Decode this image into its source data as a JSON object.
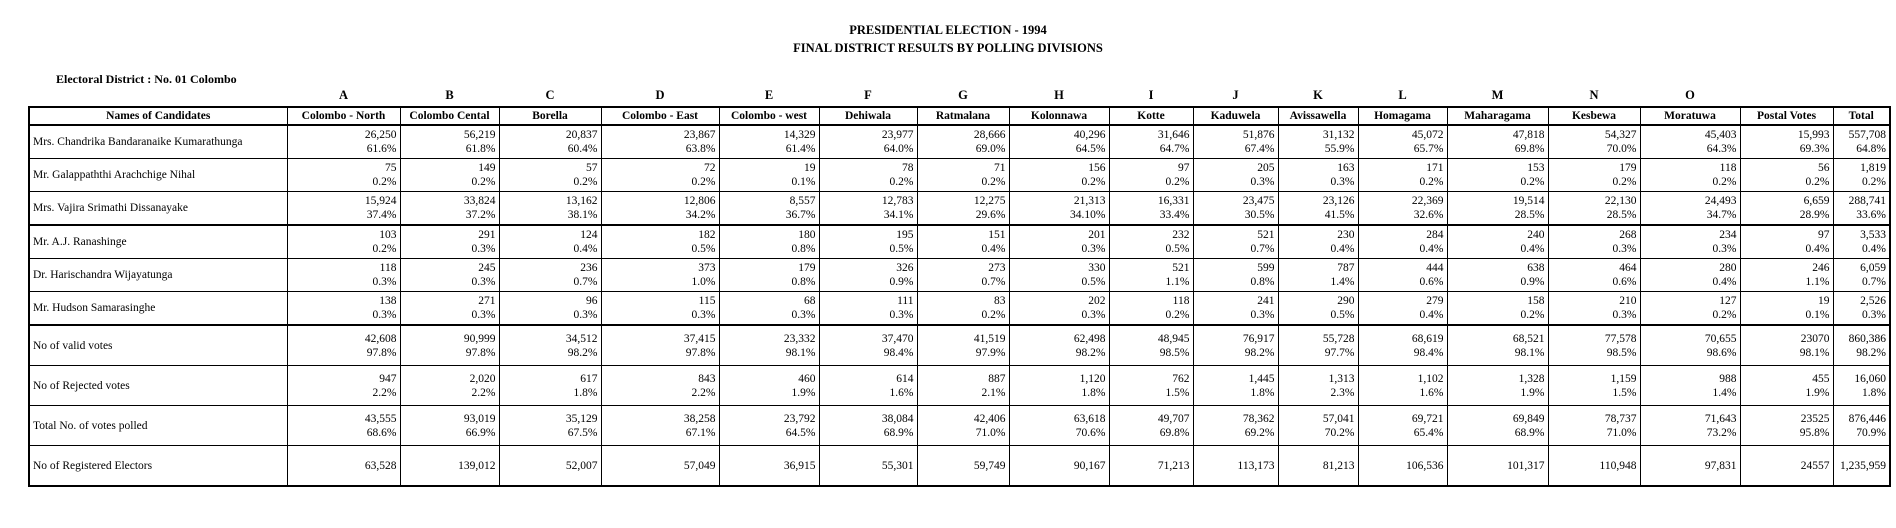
{
  "title_line1": "PRESIDENTIAL ELECTION - 1994",
  "title_line2": "FINAL DISTRICT RESULTS BY POLLING DIVISIONS",
  "district": "Electoral District : No. 01 Colombo",
  "letters": [
    "A",
    "B",
    "C",
    "D",
    "E",
    "F",
    "G",
    "H",
    "I",
    "J",
    "K",
    "L",
    "M",
    "N",
    "O"
  ],
  "headers": [
    "Names of Candidates",
    "Colombo - North",
    "Colombo Cental",
    "Borella",
    "Colombo - East",
    "Colombo - west",
    "Dehiwala",
    "Ratmalana",
    "Kolonnawa",
    "Kotte",
    "Kaduwela",
    "Avissawella",
    "Homagama",
    "Maharagama",
    "Kesbewa",
    "Moratuwa",
    "Postal Votes",
    "Total"
  ],
  "rows": [
    {
      "name": "Mrs. Chandrika Bandaranaike Kumarathunga",
      "type": "cand",
      "cells": [
        [
          "26,250",
          "61.6%"
        ],
        [
          "56,219",
          "61.8%"
        ],
        [
          "20,837",
          "60.4%"
        ],
        [
          "23,867",
          "63.8%"
        ],
        [
          "14,329",
          "61.4%"
        ],
        [
          "23,977",
          "64.0%"
        ],
        [
          "28,666",
          "69.0%"
        ],
        [
          "40,296",
          "64.5%"
        ],
        [
          "31,646",
          "64.7%"
        ],
        [
          "51,876",
          "67.4%"
        ],
        [
          "31,132",
          "55.9%"
        ],
        [
          "45,072",
          "65.7%"
        ],
        [
          "47,818",
          "69.8%"
        ],
        [
          "54,327",
          "70.0%"
        ],
        [
          "45,403",
          "64.3%"
        ],
        [
          "15,993",
          "69.3%"
        ],
        [
          "557,708",
          "64.8%"
        ]
      ]
    },
    {
      "name": "Mr. Galappaththi Arachchige Nihal",
      "type": "cand",
      "cells": [
        [
          "75",
          "0.2%"
        ],
        [
          "149",
          "0.2%"
        ],
        [
          "57",
          "0.2%"
        ],
        [
          "72",
          "0.2%"
        ],
        [
          "19",
          "0.1%"
        ],
        [
          "78",
          "0.2%"
        ],
        [
          "71",
          "0.2%"
        ],
        [
          "156",
          "0.2%"
        ],
        [
          "97",
          "0.2%"
        ],
        [
          "205",
          "0.3%"
        ],
        [
          "163",
          "0.3%"
        ],
        [
          "171",
          "0.2%"
        ],
        [
          "153",
          "0.2%"
        ],
        [
          "179",
          "0.2%"
        ],
        [
          "118",
          "0.2%"
        ],
        [
          "56",
          "0.2%"
        ],
        [
          "1,819",
          "0.2%"
        ]
      ]
    },
    {
      "name": "Mrs. Vajira Srimathi  Dissanayake",
      "type": "cand",
      "cells": [
        [
          "15,924",
          "37.4%"
        ],
        [
          "33,824",
          "37.2%"
        ],
        [
          "13,162",
          "38.1%"
        ],
        [
          "12,806",
          "34.2%"
        ],
        [
          "8,557",
          "36.7%"
        ],
        [
          "12,783",
          "34.1%"
        ],
        [
          "12,275",
          "29.6%"
        ],
        [
          "21,313",
          "34.10%"
        ],
        [
          "16,331",
          "33.4%"
        ],
        [
          "23,475",
          "30.5%"
        ],
        [
          "23,126",
          "41.5%"
        ],
        [
          "22,369",
          "32.6%"
        ],
        [
          "19,514",
          "28.5%"
        ],
        [
          "22,130",
          "28.5%"
        ],
        [
          "24,493",
          "34.7%"
        ],
        [
          "6,659",
          "28.9%"
        ],
        [
          "288,741",
          "33.6%"
        ]
      ]
    },
    {
      "name": "Mr. A.J. Ranashinge",
      "type": "cand",
      "cells": [
        [
          "103",
          "0.2%"
        ],
        [
          "291",
          "0.3%"
        ],
        [
          "124",
          "0.4%"
        ],
        [
          "182",
          "0.5%"
        ],
        [
          "180",
          "0.8%"
        ],
        [
          "195",
          "0.5%"
        ],
        [
          "151",
          "0.4%"
        ],
        [
          "201",
          "0.3%"
        ],
        [
          "232",
          "0.5%"
        ],
        [
          "521",
          "0.7%"
        ],
        [
          "230",
          "0.4%"
        ],
        [
          "284",
          "0.4%"
        ],
        [
          "240",
          "0.4%"
        ],
        [
          "268",
          "0.3%"
        ],
        [
          "234",
          "0.3%"
        ],
        [
          "97",
          "0.4%"
        ],
        [
          "3,533",
          "0.4%"
        ]
      ]
    },
    {
      "name": "Dr. Harischandra Wijayatunga",
      "type": "cand",
      "cells": [
        [
          "118",
          "0.3%"
        ],
        [
          "245",
          "0.3%"
        ],
        [
          "236",
          "0.7%"
        ],
        [
          "373",
          "1.0%"
        ],
        [
          "179",
          "0.8%"
        ],
        [
          "326",
          "0.9%"
        ],
        [
          "273",
          "0.7%"
        ],
        [
          "330",
          "0.5%"
        ],
        [
          "521",
          "1.1%"
        ],
        [
          "599",
          "0.8%"
        ],
        [
          "787",
          "1.4%"
        ],
        [
          "444",
          "0.6%"
        ],
        [
          "638",
          "0.9%"
        ],
        [
          "464",
          "0.6%"
        ],
        [
          "280",
          "0.4%"
        ],
        [
          "246",
          "1.1%"
        ],
        [
          "6,059",
          "0.7%"
        ]
      ]
    },
    {
      "name": "Mr. Hudson Samarasinghe",
      "type": "cand",
      "cells": [
        [
          "138",
          "0.3%"
        ],
        [
          "271",
          "0.3%"
        ],
        [
          "96",
          "0.3%"
        ],
        [
          "115",
          "0.3%"
        ],
        [
          "68",
          "0.3%"
        ],
        [
          "111",
          "0.3%"
        ],
        [
          "83",
          "0.2%"
        ],
        [
          "202",
          "0.3%"
        ],
        [
          "118",
          "0.2%"
        ],
        [
          "241",
          "0.3%"
        ],
        [
          "290",
          "0.5%"
        ],
        [
          "279",
          "0.4%"
        ],
        [
          "158",
          "0.2%"
        ],
        [
          "210",
          "0.3%"
        ],
        [
          "127",
          "0.2%"
        ],
        [
          "19",
          "0.1%"
        ],
        [
          "2,526",
          "0.3%"
        ]
      ]
    },
    {
      "name": "No of valid votes",
      "type": "summ",
      "cells": [
        [
          "42,608",
          "97.8%"
        ],
        [
          "90,999",
          "97.8%"
        ],
        [
          "34,512",
          "98.2%"
        ],
        [
          "37,415",
          "97.8%"
        ],
        [
          "23,332",
          "98.1%"
        ],
        [
          "37,470",
          "98.4%"
        ],
        [
          "41,519",
          "97.9%"
        ],
        [
          "62,498",
          "98.2%"
        ],
        [
          "48,945",
          "98.5%"
        ],
        [
          "76,917",
          "98.2%"
        ],
        [
          "55,728",
          "97.7%"
        ],
        [
          "68,619",
          "98.4%"
        ],
        [
          "68,521",
          "98.1%"
        ],
        [
          "77,578",
          "98.5%"
        ],
        [
          "70,655",
          "98.6%"
        ],
        [
          "23070",
          "98.1%"
        ],
        [
          "860,386",
          "98.2%"
        ]
      ]
    },
    {
      "name": "No of Rejected votes",
      "type": "summ",
      "cells": [
        [
          "947",
          "2.2%"
        ],
        [
          "2,020",
          "2.2%"
        ],
        [
          "617",
          "1.8%"
        ],
        [
          "843",
          "2.2%"
        ],
        [
          "460",
          "1.9%"
        ],
        [
          "614",
          "1.6%"
        ],
        [
          "887",
          "2.1%"
        ],
        [
          "1,120",
          "1.8%"
        ],
        [
          "762",
          "1.5%"
        ],
        [
          "1,445",
          "1.8%"
        ],
        [
          "1,313",
          "2.3%"
        ],
        [
          "1,102",
          "1.6%"
        ],
        [
          "1,328",
          "1.9%"
        ],
        [
          "1,159",
          "1.5%"
        ],
        [
          "988",
          "1.4%"
        ],
        [
          "455",
          "1.9%"
        ],
        [
          "16,060",
          "1.8%"
        ]
      ]
    },
    {
      "name": "Total No. of votes polled",
      "type": "summ",
      "cells": [
        [
          "43,555",
          "68.6%"
        ],
        [
          "93,019",
          "66.9%"
        ],
        [
          "35,129",
          "67.5%"
        ],
        [
          "38,258",
          "67.1%"
        ],
        [
          "23,792",
          "64.5%"
        ],
        [
          "38,084",
          "68.9%"
        ],
        [
          "42,406",
          "71.0%"
        ],
        [
          "63,618",
          "70.6%"
        ],
        [
          "49,707",
          "69.8%"
        ],
        [
          "78,362",
          "69.2%"
        ],
        [
          "57,041",
          "70.2%"
        ],
        [
          "69,721",
          "65.4%"
        ],
        [
          "69,849",
          "68.9%"
        ],
        [
          "78,737",
          "71.0%"
        ],
        [
          "71,643",
          "73.2%"
        ],
        [
          "23525",
          "95.8%"
        ],
        [
          "876,446",
          "70.9%"
        ]
      ]
    },
    {
      "name": "No of Registered Electors",
      "type": "summ",
      "cells": [
        [
          "63,528"
        ],
        [
          "139,012"
        ],
        [
          "52,007"
        ],
        [
          "57,049"
        ],
        [
          "36,915"
        ],
        [
          "55,301"
        ],
        [
          "59,749"
        ],
        [
          "90,167"
        ],
        [
          "71,213"
        ],
        [
          "113,173"
        ],
        [
          "81,213"
        ],
        [
          "106,536"
        ],
        [
          "101,317"
        ],
        [
          "110,948"
        ],
        [
          "97,831"
        ],
        [
          "24557"
        ],
        [
          "1,235,959"
        ]
      ]
    }
  ]
}
